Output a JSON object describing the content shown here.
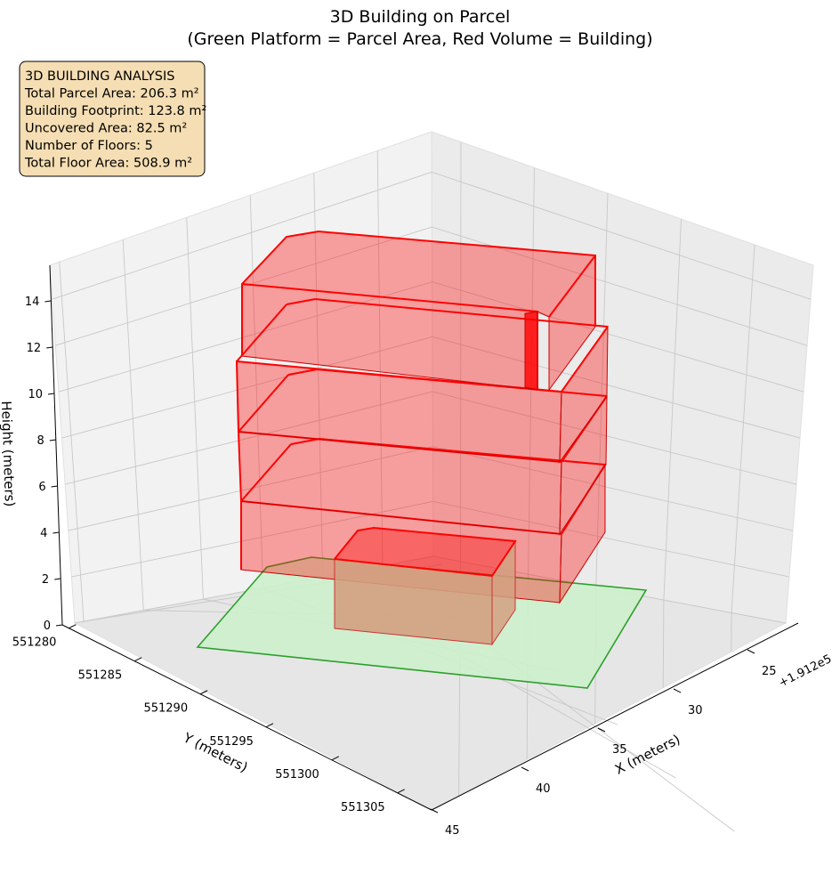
{
  "chart_data": {
    "type": "3d-building",
    "title_line1": "3D Building on Parcel",
    "title_line2": "(Green Platform = Parcel Area, Red Volume = Building)",
    "xlabel": "X (meters)",
    "ylabel": "Y (meters)",
    "zlabel": "Height (meters)",
    "x_offset_label": "+1.912e5",
    "x_ticks": [
      "25",
      "30",
      "35",
      "40",
      "45"
    ],
    "y_ticks": [
      "551280",
      "551285",
      "551290",
      "551295",
      "551300",
      "551305"
    ],
    "z_ticks": [
      "0",
      "2",
      "4",
      "6",
      "8",
      "10",
      "12",
      "14"
    ],
    "info_box": {
      "heading": "3D BUILDING ANALYSIS",
      "parcel_area": "Total Parcel Area: 206.3 m²",
      "footprint": "Building Footprint: 123.8 m²",
      "uncovered": "Uncovered Area: 82.5 m²",
      "floors": "Number of Floors: 5",
      "floor_area": "Total Floor Area: 508.9 m²"
    },
    "number_of_floors": 5,
    "parcel_color": "#2ca02c",
    "building_color": "#ff0000",
    "infobox_color": "#f5deb3"
  }
}
